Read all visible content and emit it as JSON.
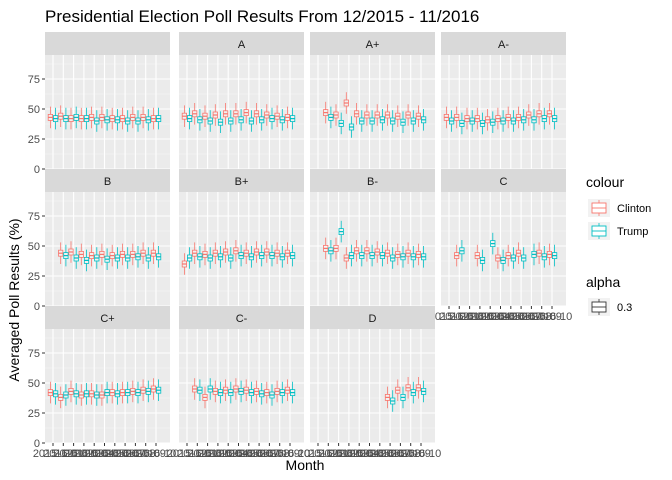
{
  "chart_data": {
    "type": "boxplot",
    "title": "Presidential Election Poll Results From 12/2015 - 11/2016",
    "xlabel": "Month",
    "ylabel": "Averaged Poll Results (%)",
    "ylim": [
      0,
      95
    ],
    "y_ticks": [
      0,
      25,
      50,
      75
    ],
    "facet_by": "grade",
    "facets": [
      "",
      "A",
      "A+",
      "A-",
      "B",
      "B+",
      "B-",
      "C",
      "C+",
      "C-",
      "D"
    ],
    "x_tick_labels": [
      "2015-12",
      "2016-01",
      "2016-02",
      "2016-03",
      "2016-04",
      "2016-05",
      "2016-06",
      "2016-07",
      "2016-08",
      "2016-09",
      "2016-10"
    ],
    "legend": {
      "colour_title": "colour",
      "colour_entries": [
        {
          "label": "Clinton",
          "color": "#F8766D"
        },
        {
          "label": "Trump",
          "color": "#00BFC4"
        }
      ],
      "alpha_title": "alpha",
      "alpha_entries": [
        "0.3"
      ],
      "position": "right"
    },
    "series": [
      {
        "name": "Clinton",
        "color": "#F8766D",
        "medians": {
          "": [
            43,
            44,
            42,
            42,
            43,
            43,
            42,
            42,
            43,
            43,
            42
          ],
          "A": [
            44,
            46,
            44,
            45,
            46,
            46,
            47,
            46,
            45,
            44,
            43
          ],
          "A+": [
            null,
            47,
            45,
            55,
            46,
            45,
            45,
            45,
            44,
            45,
            44
          ],
          "A-": [
            43,
            43,
            42,
            42,
            41,
            42,
            43,
            43,
            45,
            46,
            46
          ],
          "B": [
            null,
            44,
            45,
            43,
            42,
            43,
            42,
            43,
            43,
            44,
            44
          ],
          "B+": [
            35,
            44,
            43,
            44,
            45,
            46,
            44,
            45,
            45,
            44,
            44
          ],
          "B-": [
            null,
            48,
            48,
            40,
            46,
            46,
            45,
            44,
            43,
            44,
            43
          ],
          "C": [
            null,
            42,
            null,
            42,
            null,
            40,
            42,
            44,
            null,
            44,
            43
          ],
          "C+": [
            42,
            38,
            43,
            40,
            41,
            40,
            42,
            42,
            43,
            44,
            45
          ],
          "C-": [
            null,
            45,
            38,
            43,
            44,
            45,
            44,
            43,
            42,
            43,
            44
          ],
          "D": [
            null,
            null,
            null,
            null,
            null,
            null,
            null,
            38,
            44,
            46,
            46
          ]
        }
      },
      {
        "name": "Trump",
        "color": "#00BFC4",
        "medians": {
          "": [
            42,
            42,
            43,
            42,
            40,
            41,
            41,
            40,
            40,
            41,
            42
          ],
          "A": [
            42,
            41,
            40,
            39,
            40,
            41,
            40,
            41,
            42,
            41,
            42
          ],
          "A+": [
            null,
            43,
            38,
            35,
            40,
            40,
            41,
            40,
            39,
            40,
            41
          ],
          "A-": [
            40,
            38,
            40,
            38,
            39,
            40,
            40,
            41,
            41,
            42,
            42
          ],
          "B": [
            null,
            42,
            40,
            38,
            40,
            39,
            40,
            40,
            41,
            40,
            41
          ],
          "B+": [
            40,
            41,
            40,
            41,
            40,
            42,
            41,
            42,
            42,
            41,
            42
          ],
          "B-": [
            null,
            46,
            62,
            42,
            42,
            42,
            42,
            40,
            41,
            41,
            41
          ],
          "C": [
            null,
            46,
            null,
            38,
            52,
            38,
            40,
            40,
            43,
            41,
            42
          ],
          "C+": [
            41,
            40,
            41,
            41,
            40,
            42,
            41,
            42,
            42,
            43,
            44
          ],
          "C-": [
            null,
            44,
            45,
            42,
            42,
            43,
            42,
            41,
            40,
            42,
            42
          ],
          "D": [
            null,
            null,
            null,
            null,
            null,
            null,
            null,
            35,
            38,
            42,
            43
          ]
        }
      }
    ]
  }
}
